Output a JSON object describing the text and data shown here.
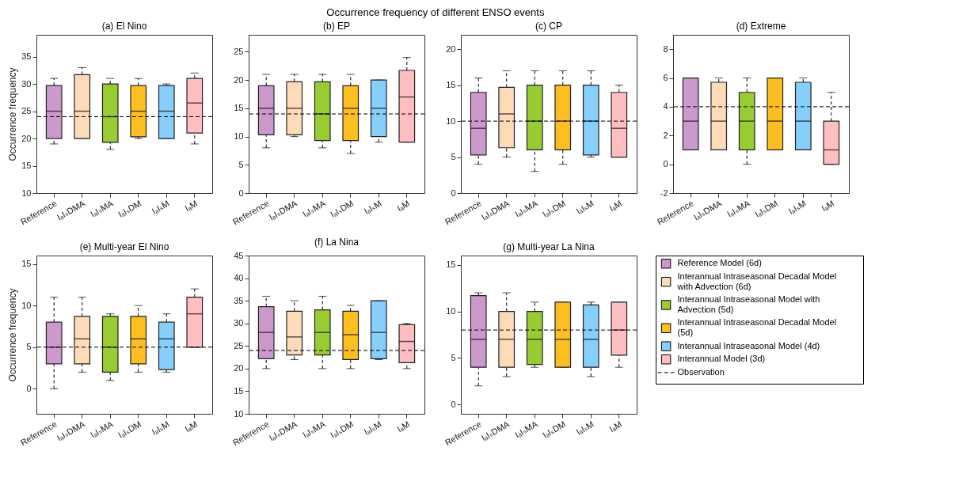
{
  "chart_data": [
    {
      "type": "box",
      "title": "(a) El Nino",
      "ylabel": "Occurrence frequency",
      "annotations": [
        "Occurrence frequency of different ENSO events"
      ],
      "categories": [
        "Reference",
        "IₐIₛDMA",
        "IₐIₛMA",
        "IₐIₛDM",
        "IₐIₛM",
        "IₐM"
      ],
      "ylim": [
        10,
        39
      ],
      "yticks": [
        10,
        15,
        20,
        25,
        30,
        35
      ],
      "legend": false,
      "ref_lines": [
        {
          "axis": "y",
          "value": 24,
          "line_style": "dashed"
        }
      ],
      "series": [
        {
          "color": "#cc99cc",
          "boxes": [
            {
              "low": 19,
              "q1": 20,
              "median": 25,
              "q3": 29.7,
              "high": 31
            },
            null,
            null,
            null,
            null,
            null
          ]
        },
        {
          "color": "#fddbb8",
          "boxes": [
            null,
            {
              "low": 20,
              "q1": 20,
              "median": 25,
              "q3": 31.7,
              "high": 33
            },
            null,
            null,
            null,
            null
          ]
        },
        {
          "color": "#99cc33",
          "boxes": [
            null,
            null,
            {
              "low": 18,
              "q1": 19.3,
              "median": 24,
              "q3": 30,
              "high": 31
            },
            null,
            null,
            null
          ]
        },
        {
          "color": "#fdbe22",
          "boxes": [
            null,
            null,
            null,
            {
              "low": 20,
              "q1": 20.3,
              "median": 25,
              "q3": 29.7,
              "high": 31
            },
            null,
            null
          ]
        },
        {
          "color": "#87cefa",
          "boxes": [
            null,
            null,
            null,
            null,
            {
              "low": 20,
              "q1": 20,
              "median": 25,
              "q3": 29.7,
              "high": 30
            },
            null
          ]
        },
        {
          "color": "#ffbfc2",
          "boxes": [
            null,
            null,
            null,
            null,
            null,
            {
              "low": 19,
              "q1": 21,
              "median": 26.5,
              "q3": 31,
              "high": 32
            }
          ]
        }
      ]
    },
    {
      "type": "box",
      "title": "(b) EP",
      "categories": [
        "Reference",
        "IₐIₛDMA",
        "IₐIₛMA",
        "IₐIₛDM",
        "IₐIₛM",
        "IₐM"
      ],
      "ylim": [
        0,
        28
      ],
      "yticks": [
        0,
        5,
        10,
        15,
        20,
        25
      ],
      "legend": false,
      "ref_lines": [
        {
          "axis": "y",
          "value": 14,
          "line_style": "dashed"
        }
      ],
      "series": [
        {
          "color": "#cc99cc",
          "boxes": [
            {
              "low": 8,
              "q1": 10.3,
              "median": 15,
              "q3": 19,
              "high": 21
            },
            null,
            null,
            null,
            null,
            null
          ]
        },
        {
          "color": "#fddbb8",
          "boxes": [
            null,
            {
              "low": 10,
              "q1": 10.3,
              "median": 15,
              "q3": 19.7,
              "high": 21
            },
            null,
            null,
            null,
            null
          ]
        },
        {
          "color": "#99cc33",
          "boxes": [
            null,
            null,
            {
              "low": 8,
              "q1": 9.3,
              "median": 14,
              "q3": 19.7,
              "high": 21
            },
            null,
            null,
            null
          ]
        },
        {
          "color": "#fdbe22",
          "boxes": [
            null,
            null,
            null,
            {
              "low": 7,
              "q1": 9.3,
              "median": 15,
              "q3": 19,
              "high": 21
            },
            null,
            null
          ]
        },
        {
          "color": "#87cefa",
          "boxes": [
            null,
            null,
            null,
            null,
            {
              "low": 9,
              "q1": 10,
              "median": 15,
              "q3": 20,
              "high": 20
            },
            null
          ]
        },
        {
          "color": "#ffbfc2",
          "boxes": [
            null,
            null,
            null,
            null,
            null,
            {
              "low": 9,
              "q1": 9,
              "median": 17,
              "q3": 21.7,
              "high": 24
            }
          ]
        }
      ]
    },
    {
      "type": "box",
      "title": "(c) CP",
      "categories": [
        "Reference",
        "IₐIₛDMA",
        "IₐIₛMA",
        "IₐIₛDM",
        "IₐIₛM",
        "IₐM"
      ],
      "ylim": [
        0,
        22
      ],
      "yticks": [
        0,
        5,
        10,
        15,
        20
      ],
      "legend": false,
      "ref_lines": [
        {
          "axis": "y",
          "value": 10,
          "line_style": "dashed"
        }
      ],
      "series": [
        {
          "color": "#cc99cc",
          "boxes": [
            {
              "low": 4,
              "q1": 5.3,
              "median": 9,
              "q3": 14,
              "high": 16
            },
            null,
            null,
            null,
            null,
            null
          ]
        },
        {
          "color": "#fddbb8",
          "boxes": [
            null,
            {
              "low": 5,
              "q1": 6.3,
              "median": 11,
              "q3": 14.7,
              "high": 17
            },
            null,
            null,
            null,
            null
          ]
        },
        {
          "color": "#99cc33",
          "boxes": [
            null,
            null,
            {
              "low": 3,
              "q1": 6,
              "median": 10,
              "q3": 15,
              "high": 17
            },
            null,
            null,
            null
          ]
        },
        {
          "color": "#fdbe22",
          "boxes": [
            null,
            null,
            null,
            {
              "low": 4,
              "q1": 6,
              "median": 10,
              "q3": 15,
              "high": 17
            },
            null,
            null
          ]
        },
        {
          "color": "#87cefa",
          "boxes": [
            null,
            null,
            null,
            null,
            {
              "low": 5,
              "q1": 5.3,
              "median": 10,
              "q3": 15,
              "high": 17
            },
            null
          ]
        },
        {
          "color": "#ffbfc2",
          "boxes": [
            null,
            null,
            null,
            null,
            null,
            {
              "low": 5,
              "q1": 5,
              "median": 9,
              "q3": 14,
              "high": 15
            }
          ]
        }
      ]
    },
    {
      "type": "box",
      "title": "(d) Extreme",
      "categories": [
        "Reference",
        "IₐIₛDMA",
        "IₐIₛMA",
        "IₐIₛDM",
        "IₐIₛM",
        "IₐM"
      ],
      "ylim": [
        -2,
        9
      ],
      "yticks": [
        -2,
        0,
        2,
        4,
        6,
        8
      ],
      "legend": false,
      "ref_lines": [
        {
          "axis": "y",
          "value": 4,
          "line_style": "dashed"
        }
      ],
      "series": [
        {
          "color": "#cc99cc",
          "boxes": [
            {
              "low": 1,
              "q1": 1,
              "median": 3,
              "q3": 6,
              "high": 6
            },
            null,
            null,
            null,
            null,
            null
          ]
        },
        {
          "color": "#fddbb8",
          "boxes": [
            null,
            {
              "low": 1,
              "q1": 1,
              "median": 3,
              "q3": 5.7,
              "high": 6
            },
            null,
            null,
            null,
            null
          ]
        },
        {
          "color": "#99cc33",
          "boxes": [
            null,
            null,
            {
              "low": 0,
              "q1": 1,
              "median": 3,
              "q3": 5,
              "high": 6
            },
            null,
            null,
            null
          ]
        },
        {
          "color": "#fdbe22",
          "boxes": [
            null,
            null,
            null,
            {
              "low": 1,
              "q1": 1,
              "median": 3,
              "q3": 6,
              "high": 6
            },
            null,
            null
          ]
        },
        {
          "color": "#87cefa",
          "boxes": [
            null,
            null,
            null,
            null,
            {
              "low": 1,
              "q1": 1,
              "median": 3,
              "q3": 5.7,
              "high": 6
            },
            null
          ]
        },
        {
          "color": "#ffbfc2",
          "boxes": [
            null,
            null,
            null,
            null,
            null,
            {
              "low": 0,
              "q1": 0,
              "median": 1,
              "q3": 3,
              "high": 5
            }
          ]
        }
      ]
    },
    {
      "type": "box",
      "title": "(e) Multi-year El Nino",
      "ylabel": "Occurrence frequency",
      "categories": [
        "Reference",
        "IₐIₛDMA",
        "IₐIₛMA",
        "IₐIₛDM",
        "IₐIₛM",
        "IₐM"
      ],
      "ylim": [
        -3,
        16
      ],
      "yticks": [
        0,
        5,
        10,
        15
      ],
      "legend": false,
      "ref_lines": [
        {
          "axis": "y",
          "value": 5,
          "line_style": "dashed"
        }
      ],
      "series": [
        {
          "color": "#cc99cc",
          "boxes": [
            {
              "low": 0,
              "q1": 3,
              "median": 5,
              "q3": 8,
              "high": 11
            },
            null,
            null,
            null,
            null,
            null
          ]
        },
        {
          "color": "#fddbb8",
          "boxes": [
            null,
            {
              "low": 2,
              "q1": 3,
              "median": 6,
              "q3": 8.7,
              "high": 11
            },
            null,
            null,
            null,
            null
          ]
        },
        {
          "color": "#99cc33",
          "boxes": [
            null,
            null,
            {
              "low": 1,
              "q1": 2,
              "median": 5,
              "q3": 8.7,
              "high": 9
            },
            null,
            null,
            null
          ]
        },
        {
          "color": "#fdbe22",
          "boxes": [
            null,
            null,
            null,
            {
              "low": 2,
              "q1": 3,
              "median": 6,
              "q3": 8.7,
              "high": 10
            },
            null,
            null
          ]
        },
        {
          "color": "#87cefa",
          "boxes": [
            null,
            null,
            null,
            null,
            {
              "low": 2,
              "q1": 2.3,
              "median": 6,
              "q3": 8,
              "high": 9
            },
            null
          ]
        },
        {
          "color": "#ffbfc2",
          "boxes": [
            null,
            null,
            null,
            null,
            null,
            {
              "low": 5,
              "q1": 5,
              "median": 9,
              "q3": 11,
              "high": 12
            }
          ]
        }
      ]
    },
    {
      "type": "box",
      "title": "(f) La Nina",
      "categories": [
        "Reference",
        "IₐIₛDMA",
        "IₐIₛMA",
        "IₐIₛDM",
        "IₐIₛM",
        "IₐM"
      ],
      "ylim": [
        10,
        45
      ],
      "yticks": [
        10,
        15,
        20,
        25,
        30,
        35,
        40,
        45
      ],
      "legend": false,
      "ref_lines": [
        {
          "axis": "y",
          "value": 24,
          "line_style": "dashed"
        }
      ],
      "series": [
        {
          "color": "#cc99cc",
          "boxes": [
            {
              "low": 20,
              "q1": 22.2,
              "median": 28,
              "q3": 33.7,
              "high": 36
            },
            null,
            null,
            null,
            null,
            null
          ]
        },
        {
          "color": "#fddbb8",
          "boxes": [
            null,
            {
              "low": 22,
              "q1": 23,
              "median": 27,
              "q3": 32.7,
              "high": 35
            },
            null,
            null,
            null,
            null
          ]
        },
        {
          "color": "#99cc33",
          "boxes": [
            null,
            null,
            {
              "low": 20,
              "q1": 23,
              "median": 28,
              "q3": 33,
              "high": 36
            },
            null,
            null,
            null
          ]
        },
        {
          "color": "#fdbe22",
          "boxes": [
            null,
            null,
            null,
            {
              "low": 20,
              "q1": 22,
              "median": 27.5,
              "q3": 32.7,
              "high": 34
            },
            null,
            null
          ]
        },
        {
          "color": "#87cefa",
          "boxes": [
            null,
            null,
            null,
            null,
            {
              "low": 22,
              "q1": 22.2,
              "median": 28,
              "q3": 35,
              "high": 35
            },
            null
          ]
        },
        {
          "color": "#ffbfc2",
          "boxes": [
            null,
            null,
            null,
            null,
            null,
            {
              "low": 20,
              "q1": 21.3,
              "median": 26,
              "q3": 29.7,
              "high": 30
            }
          ]
        }
      ]
    },
    {
      "type": "box",
      "title": "(g) Multi-year La Nina",
      "categories": [
        "Reference",
        "IₐIₛDMA",
        "IₐIₛMA",
        "IₐIₛDM",
        "IₐIₛM",
        "IₐM"
      ],
      "ylim": [
        -1,
        16
      ],
      "yticks": [
        0,
        5,
        10,
        15
      ],
      "legend": "right",
      "ref_lines": [
        {
          "axis": "y",
          "value": 8,
          "line_style": "dashed",
          "label": "Observation"
        }
      ],
      "series": [
        {
          "name": "Reference Model (6d)",
          "color": "#cc99cc",
          "boxes": [
            {
              "low": 2,
              "q1": 4,
              "median": 7,
              "q3": 11.7,
              "high": 12
            },
            null,
            null,
            null,
            null,
            null
          ]
        },
        {
          "name": "Interannual Intraseasonal Decadal Model with Advection (6d)",
          "color": "#fddbb8",
          "boxes": [
            null,
            {
              "low": 3,
              "q1": 4,
              "median": 7,
              "q3": 10,
              "high": 12
            },
            null,
            null,
            null,
            null
          ]
        },
        {
          "name": "Interannual Intraseasonal Model with Advection (5d)",
          "color": "#99cc33",
          "boxes": [
            null,
            null,
            {
              "low": 4,
              "q1": 4.3,
              "median": 7,
              "q3": 10,
              "high": 11
            },
            null,
            null,
            null
          ]
        },
        {
          "name": "Interannual Intraseasonal Decadal Model (5d)",
          "color": "#fdbe22",
          "boxes": [
            null,
            null,
            null,
            {
              "low": 4,
              "q1": 4,
              "median": 7,
              "q3": 11,
              "high": 11
            },
            null,
            null
          ]
        },
        {
          "name": "Interannual Intraseasonal Model (4d)",
          "color": "#87cefa",
          "boxes": [
            null,
            null,
            null,
            null,
            {
              "low": 3,
              "q1": 4,
              "median": 7,
              "q3": 10.7,
              "high": 11
            },
            null
          ]
        },
        {
          "name": "Interannual Model (3d)",
          "color": "#ffbfc2",
          "boxes": [
            null,
            null,
            null,
            null,
            null,
            {
              "low": 4,
              "q1": 5.3,
              "median": 8,
              "q3": 11,
              "high": 11
            }
          ]
        }
      ]
    }
  ]
}
